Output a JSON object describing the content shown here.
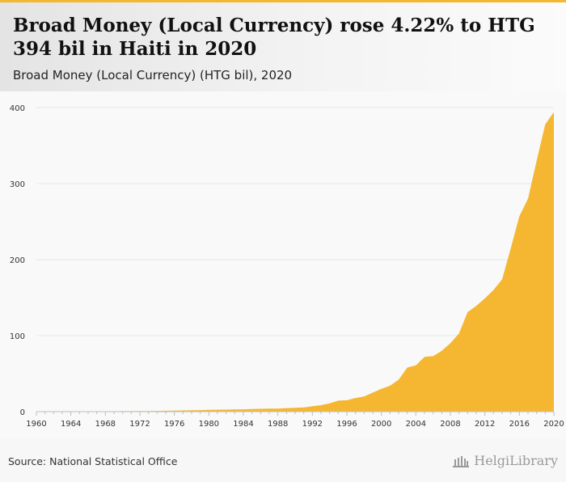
{
  "header": {
    "title": "Broad Money (Local Currency) rose 4.22% to HTG 394 bil in Haiti in 2020",
    "subtitle": "Broad Money (Local Currency) (HTG bil), 2020"
  },
  "footer": {
    "source": "Source: National Statistical Office",
    "logo_text": "HelgiLibrary"
  },
  "colors": {
    "area_fill": "#f5b731",
    "accent_bar": "#f5b731"
  },
  "chart_data": {
    "type": "area",
    "title": "Broad Money (Local Currency) rose 4.22% to HTG 394 bil in Haiti in 2020",
    "subtitle": "Broad Money (Local Currency) (HTG bil), 2020",
    "xlabel": "",
    "ylabel": "",
    "xlim": [
      1960,
      2020
    ],
    "ylim": [
      0,
      400
    ],
    "grid": true,
    "yticks": [
      0,
      100,
      200,
      300,
      400
    ],
    "xticks": [
      1960,
      1964,
      1968,
      1972,
      1976,
      1980,
      1984,
      1988,
      1992,
      1996,
      2000,
      2004,
      2008,
      2012,
      2016,
      2020
    ],
    "x": [
      1960,
      1961,
      1962,
      1963,
      1964,
      1965,
      1966,
      1967,
      1968,
      1969,
      1970,
      1971,
      1972,
      1973,
      1974,
      1975,
      1976,
      1977,
      1978,
      1979,
      1980,
      1981,
      1982,
      1983,
      1984,
      1985,
      1986,
      1987,
      1988,
      1989,
      1990,
      1991,
      1992,
      1993,
      1994,
      1995,
      1996,
      1997,
      1998,
      1999,
      2000,
      2001,
      2002,
      2003,
      2004,
      2005,
      2006,
      2007,
      2008,
      2009,
      2010,
      2011,
      2012,
      2013,
      2014,
      2015,
      2016,
      2017,
      2018,
      2019,
      2020
    ],
    "series": [
      {
        "values": [
          0.3,
          0.3,
          0.3,
          0.4,
          0.4,
          0.4,
          0.4,
          0.4,
          0.5,
          0.5,
          0.6,
          0.6,
          0.7,
          0.8,
          1.0,
          1.2,
          1.4,
          1.6,
          1.8,
          2.0,
          2.3,
          2.5,
          2.7,
          2.9,
          3.1,
          3.4,
          3.7,
          3.9,
          4.0,
          4.7,
          5.0,
          5.5,
          7.0,
          8.5,
          11.0,
          14.5,
          15.0,
          18.0,
          20.0,
          25.0,
          30.0,
          34.0,
          42.0,
          58.0,
          61.0,
          72.0,
          73.0,
          80.0,
          90.0,
          103.0,
          131.0,
          139.0,
          149.0,
          160.0,
          174.0,
          215.0,
          257.0,
          280.0,
          330.0,
          378.0,
          394.0
        ]
      }
    ]
  }
}
